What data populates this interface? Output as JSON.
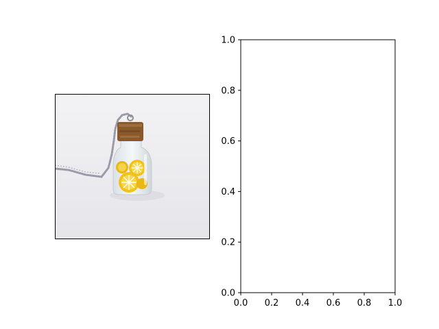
{
  "figure": {
    "background": "#ffffff",
    "left_panel": {
      "content": "photo",
      "photo_colors": {
        "background": "#eeedf1",
        "cork": "#8a5a2c",
        "lemon": "#f2c21a",
        "glass": "#e7eef2",
        "chain": "#9a9aa8"
      }
    }
  },
  "chart_data": {
    "type": "scatter",
    "series": [],
    "xlim": [
      0.0,
      1.0
    ],
    "ylim": [
      0.0,
      1.0
    ],
    "xticks": [
      "0.0",
      "0.2",
      "0.4",
      "0.6",
      "0.8",
      "1.0"
    ],
    "yticks": [
      "0.0",
      "0.2",
      "0.4",
      "0.6",
      "0.8",
      "1.0"
    ],
    "title": "",
    "xlabel": "",
    "ylabel": "",
    "grid": false
  }
}
